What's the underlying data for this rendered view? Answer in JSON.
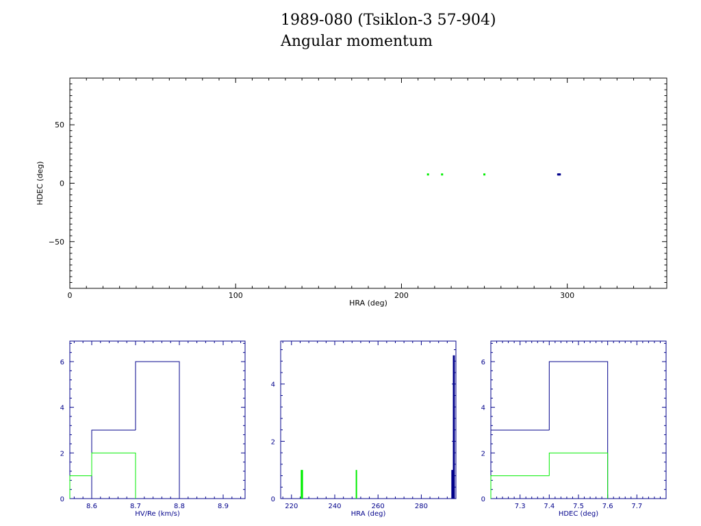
{
  "header": {
    "title": "1989-080 (Tsiklon-3 57-904)",
    "subtitle": "Angular momentum"
  },
  "colors": {
    "green": "#00ee00",
    "blue": "#00008b",
    "black": "#000000"
  },
  "chart_data": [
    {
      "type": "scatter",
      "xlabel": "HRA (deg)",
      "ylabel": "HDEC (deg)",
      "xlim": [
        0,
        360
      ],
      "ylim": [
        -90,
        90
      ],
      "xticks": [
        0,
        100,
        200,
        300
      ],
      "yticks": [
        -50,
        0,
        50
      ],
      "series": [
        {
          "color": "#00ee00",
          "points": [
            [
              216,
              7.5
            ],
            [
              224.5,
              7.5
            ],
            [
              250,
              7.5
            ]
          ]
        },
        {
          "color": "#00008b",
          "points": [
            [
              294.5,
              7.5
            ],
            [
              295,
              7.5
            ],
            [
              295.5,
              7.5
            ]
          ]
        }
      ]
    },
    {
      "type": "histogram",
      "xlabel": "HV/Re (km/s)",
      "xlim": [
        8.55,
        8.95
      ],
      "ylim": [
        0,
        6.9
      ],
      "xticks": [
        8.6,
        8.7,
        8.8,
        8.9
      ],
      "yticks": [
        0,
        2,
        4,
        6
      ],
      "series": [
        {
          "color": "#00008b",
          "steps": [
            [
              8.6,
              8.7,
              3
            ],
            [
              8.7,
              8.8,
              6
            ]
          ]
        },
        {
          "color": "#00ee00",
          "steps": [
            [
              8.55,
              8.6,
              1
            ],
            [
              8.6,
              8.7,
              2
            ]
          ]
        }
      ]
    },
    {
      "type": "histogram",
      "xlabel": "HRA (deg)",
      "xlim": [
        215,
        296
      ],
      "ylim": [
        0,
        5.5
      ],
      "xticks": [
        220,
        240,
        260,
        280
      ],
      "yticks": [
        0,
        2,
        4
      ],
      "series": [
        {
          "color": "#00ee00",
          "bars": [
            [
              224.6,
              1
            ],
            [
              225.0,
              1
            ],
            [
              250.0,
              1
            ]
          ]
        },
        {
          "color": "#00008b",
          "bars": [
            [
              294.2,
              1
            ],
            [
              294.6,
              1
            ],
            [
              294.9,
              5
            ],
            [
              295.2,
              5
            ]
          ]
        }
      ]
    },
    {
      "type": "histogram",
      "xlabel": "HDEC (deg)",
      "xlim": [
        7.2,
        7.8
      ],
      "ylim": [
        0,
        6.9
      ],
      "xticks": [
        7.3,
        7.4,
        7.5,
        7.6,
        7.7
      ],
      "yticks": [
        0,
        2,
        4,
        6
      ],
      "series": [
        {
          "color": "#00008b",
          "steps": [
            [
              7.2,
              7.4,
              3
            ],
            [
              7.4,
              7.6,
              6
            ]
          ]
        },
        {
          "color": "#00ee00",
          "steps": [
            [
              7.2,
              7.4,
              1
            ],
            [
              7.4,
              7.6,
              2
            ]
          ]
        }
      ]
    }
  ]
}
